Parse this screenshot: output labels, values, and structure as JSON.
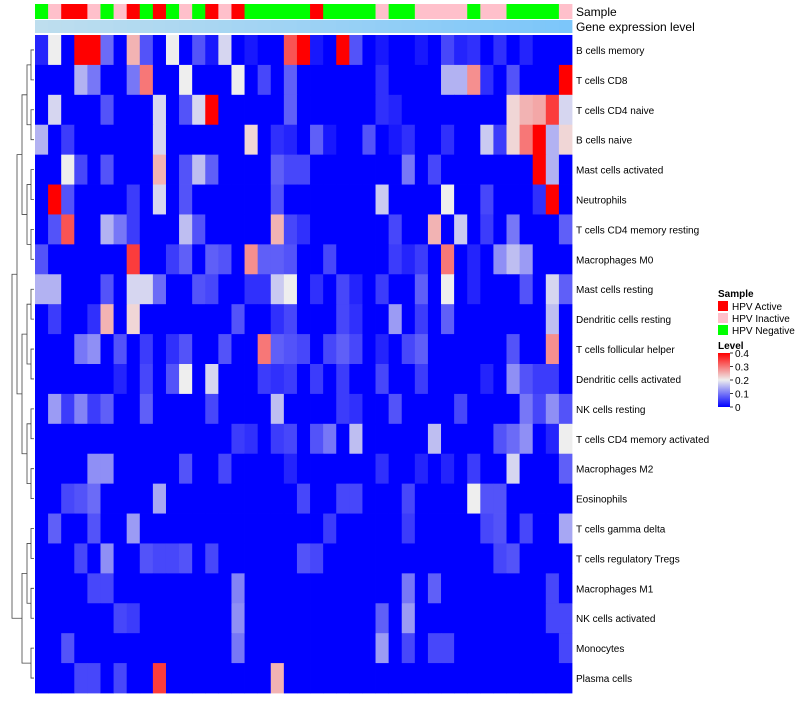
{
  "chart_data": {
    "type": "heatmap",
    "annotation_tracks": [
      "Sample",
      "Gene expression level"
    ],
    "legend": {
      "sample_title": "Sample",
      "sample_entries": [
        {
          "label": "HPV Active",
          "color": "#ff0000"
        },
        {
          "label": "HPV Inactive",
          "color": "#ffc0cb"
        },
        {
          "label": "HPV Negative",
          "color": "#00ff00"
        }
      ],
      "level_title": "Level",
      "level_ticks": [
        "0.4",
        "0.3",
        "0.2",
        "0.1",
        "0"
      ],
      "level_range": [
        0,
        0.4
      ],
      "low_color": "#0000ff",
      "mid_color": "#eeeeee",
      "high_color": "#ff0000"
    },
    "sample_groups": [
      2,
      1,
      0,
      0,
      1,
      2,
      1,
      0,
      2,
      0,
      2,
      1,
      2,
      0,
      1,
      0,
      2,
      2,
      2,
      2,
      2,
      0,
      2,
      2,
      2,
      2,
      1,
      2,
      2,
      1,
      1,
      1,
      1,
      2,
      1,
      1,
      2,
      2,
      2,
      2,
      1
    ],
    "row_labels": [
      "B cells memory",
      "T cells CD8",
      "T cells CD4 naive",
      "B cells naive",
      "Mast cells activated",
      "Neutrophils",
      "T cells CD4 memory resting",
      "Macrophages M0",
      "Mast cells resting",
      "Dendritic cells resting",
      "T cells follicular helper",
      "Dendritic cells activated",
      "NK cells resting",
      "T cells CD4 memory activated",
      "Macrophages M2",
      "Eosinophils",
      "T cells gamma delta",
      "T cells regulatory  Tregs",
      "Macrophages M1",
      "NK cells activated",
      "Monocytes",
      "Plasma cells"
    ],
    "values": [
      [
        0.03,
        0.2,
        0.0,
        0.4,
        0.4,
        0.09,
        0.0,
        0.25,
        0.07,
        0.0,
        0.2,
        0.0,
        0.07,
        0.02,
        0.18,
        0.0,
        0.02,
        0.0,
        0.0,
        0.33,
        0.4,
        0.02,
        0.0,
        0.4,
        0.07,
        0.0,
        0.02,
        0.0,
        0.0,
        0.02,
        0.0,
        0.06,
        0.03,
        0.04,
        0.0,
        0.04,
        0.0,
        0.03,
        0.0,
        0.0,
        0.0
      ],
      [
        0.0,
        0.0,
        0.0,
        0.15,
        0.1,
        0.0,
        0.0,
        0.1,
        0.3,
        0.0,
        0.0,
        0.2,
        0.0,
        0.0,
        0.0,
        0.2,
        0.0,
        0.06,
        0.0,
        0.08,
        0.0,
        0.0,
        0.0,
        0.0,
        0.0,
        0.0,
        0.04,
        0.0,
        0.0,
        0.0,
        0.0,
        0.15,
        0.15,
        0.28,
        0.04,
        0.0,
        0.07,
        0.0,
        0.0,
        0.0,
        0.4
      ],
      [
        0.0,
        0.18,
        0.0,
        0.0,
        0.0,
        0.07,
        0.0,
        0.0,
        0.0,
        0.18,
        0.0,
        0.07,
        0.18,
        0.4,
        0.0,
        0.0,
        0.0,
        0.0,
        0.0,
        0.08,
        0.0,
        0.0,
        0.0,
        0.0,
        0.0,
        0.0,
        0.04,
        0.03,
        0.0,
        0.0,
        0.0,
        0.0,
        0.0,
        0.0,
        0.0,
        0.0,
        0.22,
        0.25,
        0.26,
        0.35,
        0.18
      ],
      [
        0.15,
        0.0,
        0.05,
        0.0,
        0.0,
        0.0,
        0.0,
        0.0,
        0.0,
        0.18,
        0.0,
        0.0,
        0.0,
        0.0,
        0.0,
        0.0,
        0.22,
        0.0,
        0.04,
        0.03,
        0.0,
        0.08,
        0.02,
        0.0,
        0.0,
        0.07,
        0.0,
        0.02,
        0.04,
        0.0,
        0.0,
        0.04,
        0.0,
        0.0,
        0.17,
        0.05,
        0.22,
        0.3,
        0.4,
        0.15,
        0.22
      ],
      [
        0.0,
        0.0,
        0.2,
        0.06,
        0.0,
        0.07,
        0.0,
        0.0,
        0.0,
        0.25,
        0.0,
        0.07,
        0.16,
        0.08,
        0.0,
        0.0,
        0.0,
        0.0,
        0.08,
        0.06,
        0.06,
        0.0,
        0.0,
        0.0,
        0.0,
        0.0,
        0.0,
        0.0,
        0.1,
        0.0,
        0.06,
        0.0,
        0.0,
        0.0,
        0.0,
        0.0,
        0.0,
        0.0,
        0.4,
        0.15,
        0.0
      ],
      [
        0.0,
        0.4,
        0.07,
        0.0,
        0.0,
        0.0,
        0.0,
        0.05,
        0.0,
        0.18,
        0.0,
        0.07,
        0.0,
        0.0,
        0.0,
        0.0,
        0.0,
        0.0,
        0.07,
        0.0,
        0.0,
        0.0,
        0.0,
        0.0,
        0.0,
        0.0,
        0.17,
        0.0,
        0.0,
        0.0,
        0.0,
        0.2,
        0.0,
        0.0,
        0.06,
        0.0,
        0.0,
        0.0,
        0.04,
        0.4,
        0.0
      ],
      [
        0.0,
        0.07,
        0.33,
        0.0,
        0.0,
        0.15,
        0.1,
        0.05,
        0.0,
        0.0,
        0.0,
        0.16,
        0.07,
        0.0,
        0.0,
        0.0,
        0.0,
        0.0,
        0.25,
        0.06,
        0.04,
        0.0,
        0.0,
        0.0,
        0.0,
        0.0,
        0.0,
        0.06,
        0.0,
        0.0,
        0.25,
        0.0,
        0.17,
        0.0,
        0.05,
        0.0,
        0.1,
        0.0,
        0.0,
        0.0,
        0.08
      ],
      [
        0.07,
        0.0,
        0.0,
        0.0,
        0.0,
        0.0,
        0.0,
        0.35,
        0.0,
        0.0,
        0.05,
        0.08,
        0.0,
        0.08,
        0.07,
        0.0,
        0.28,
        0.08,
        0.08,
        0.07,
        0.0,
        0.0,
        0.06,
        0.0,
        0.0,
        0.0,
        0.0,
        0.05,
        0.03,
        0.05,
        0.0,
        0.3,
        0.0,
        0.03,
        0.0,
        0.12,
        0.16,
        0.13,
        0.0,
        0.0,
        0.0
      ],
      [
        0.15,
        0.15,
        0.0,
        0.0,
        0.0,
        0.07,
        0.0,
        0.18,
        0.18,
        0.09,
        0.0,
        0.0,
        0.07,
        0.06,
        0.0,
        0.0,
        0.04,
        0.04,
        0.17,
        0.2,
        0.0,
        0.04,
        0.0,
        0.06,
        0.03,
        0.0,
        0.05,
        0.0,
        0.0,
        0.08,
        0.0,
        0.2,
        0.0,
        0.03,
        0.0,
        0.0,
        0.0,
        0.07,
        0.0,
        0.18,
        0.08
      ],
      [
        0.0,
        0.05,
        0.0,
        0.0,
        0.04,
        0.25,
        0.0,
        0.22,
        0.0,
        0.0,
        0.0,
        0.0,
        0.0,
        0.0,
        0.0,
        0.07,
        0.0,
        0.0,
        0.04,
        0.06,
        0.0,
        0.0,
        0.0,
        0.06,
        0.04,
        0.0,
        0.0,
        0.13,
        0.0,
        0.05,
        0.0,
        0.08,
        0.0,
        0.0,
        0.0,
        0.0,
        0.0,
        0.0,
        0.0,
        0.16,
        0.0
      ],
      [
        0.0,
        0.0,
        0.0,
        0.1,
        0.12,
        0.0,
        0.07,
        0.0,
        0.05,
        0.0,
        0.04,
        0.07,
        0.0,
        0.0,
        0.07,
        0.0,
        0.0,
        0.3,
        0.08,
        0.07,
        0.06,
        0.0,
        0.06,
        0.08,
        0.06,
        0.0,
        0.03,
        0.0,
        0.06,
        0.08,
        0.0,
        0.0,
        0.0,
        0.0,
        0.0,
        0.0,
        0.07,
        0.0,
        0.0,
        0.28,
        0.0
      ],
      [
        0.0,
        0.0,
        0.0,
        0.0,
        0.0,
        0.0,
        0.03,
        0.0,
        0.06,
        0.0,
        0.07,
        0.2,
        0.0,
        0.18,
        0.0,
        0.0,
        0.0,
        0.05,
        0.04,
        0.05,
        0.0,
        0.05,
        0.0,
        0.05,
        0.0,
        0.0,
        0.06,
        0.0,
        0.0,
        0.05,
        0.0,
        0.0,
        0.0,
        0.0,
        0.03,
        0.0,
        0.12,
        0.07,
        0.05,
        0.05,
        0.0
      ],
      [
        0.0,
        0.13,
        0.05,
        0.11,
        0.05,
        0.08,
        0.0,
        0.0,
        0.08,
        0.0,
        0.0,
        0.0,
        0.0,
        0.06,
        0.0,
        0.0,
        0.0,
        0.0,
        0.16,
        0.0,
        0.0,
        0.0,
        0.0,
        0.05,
        0.04,
        0.0,
        0.0,
        0.07,
        0.0,
        0.0,
        0.0,
        0.0,
        0.06,
        0.0,
        0.0,
        0.0,
        0.0,
        0.1,
        0.06,
        0.12,
        0.07
      ],
      [
        0.0,
        0.0,
        0.0,
        0.0,
        0.0,
        0.0,
        0.0,
        0.0,
        0.0,
        0.0,
        0.0,
        0.0,
        0.0,
        0.0,
        0.0,
        0.05,
        0.04,
        0.0,
        0.05,
        0.06,
        0.0,
        0.07,
        0.1,
        0.0,
        0.16,
        0.0,
        0.0,
        0.0,
        0.0,
        0.0,
        0.16,
        0.0,
        0.0,
        0.0,
        0.0,
        0.07,
        0.09,
        0.12,
        0.0,
        0.03,
        0.2
      ],
      [
        0.0,
        0.0,
        0.0,
        0.0,
        0.12,
        0.12,
        0.0,
        0.0,
        0.0,
        0.0,
        0.0,
        0.07,
        0.0,
        0.0,
        0.06,
        0.0,
        0.0,
        0.0,
        0.0,
        0.03,
        0.0,
        0.0,
        0.0,
        0.0,
        0.0,
        0.0,
        0.04,
        0.0,
        0.0,
        0.03,
        0.0,
        0.03,
        0.0,
        0.05,
        0.0,
        0.0,
        0.18,
        0.0,
        0.0,
        0.0,
        0.08
      ],
      [
        0.0,
        0.0,
        0.06,
        0.07,
        0.09,
        0.0,
        0.0,
        0.0,
        0.0,
        0.14,
        0.0,
        0.0,
        0.0,
        0.0,
        0.0,
        0.0,
        0.0,
        0.0,
        0.0,
        0.0,
        0.06,
        0.0,
        0.0,
        0.06,
        0.06,
        0.0,
        0.0,
        0.0,
        0.06,
        0.0,
        0.0,
        0.0,
        0.0,
        0.2,
        0.07,
        0.07,
        0.0,
        0.0,
        0.0,
        0.0,
        0.0
      ],
      [
        0.0,
        0.08,
        0.0,
        0.0,
        0.07,
        0.0,
        0.0,
        0.13,
        0.0,
        0.0,
        0.0,
        0.0,
        0.0,
        0.0,
        0.0,
        0.0,
        0.0,
        0.0,
        0.0,
        0.0,
        0.0,
        0.0,
        0.05,
        0.0,
        0.0,
        0.0,
        0.0,
        0.0,
        0.05,
        0.0,
        0.0,
        0.0,
        0.0,
        0.0,
        0.06,
        0.07,
        0.0,
        0.06,
        0.0,
        0.0,
        0.14
      ],
      [
        0.0,
        0.0,
        0.0,
        0.06,
        0.0,
        0.12,
        0.0,
        0.0,
        0.07,
        0.06,
        0.06,
        0.07,
        0.0,
        0.06,
        0.0,
        0.0,
        0.0,
        0.0,
        0.0,
        0.0,
        0.07,
        0.06,
        0.0,
        0.0,
        0.0,
        0.0,
        0.0,
        0.0,
        0.0,
        0.0,
        0.0,
        0.0,
        0.0,
        0.0,
        0.0,
        0.06,
        0.07,
        0.0,
        0.0,
        0.0,
        0.0
      ],
      [
        0.0,
        0.0,
        0.0,
        0.0,
        0.06,
        0.06,
        0.0,
        0.0,
        0.0,
        0.0,
        0.0,
        0.0,
        0.0,
        0.0,
        0.0,
        0.11,
        0.0,
        0.0,
        0.0,
        0.0,
        0.0,
        0.0,
        0.0,
        0.0,
        0.0,
        0.0,
        0.0,
        0.0,
        0.1,
        0.0,
        0.08,
        0.0,
        0.0,
        0.0,
        0.0,
        0.0,
        0.0,
        0.0,
        0.0,
        0.06,
        0.0
      ],
      [
        0.0,
        0.0,
        0.0,
        0.0,
        0.0,
        0.0,
        0.06,
        0.05,
        0.0,
        0.0,
        0.0,
        0.0,
        0.0,
        0.0,
        0.0,
        0.12,
        0.0,
        0.0,
        0.0,
        0.0,
        0.0,
        0.0,
        0.0,
        0.0,
        0.0,
        0.0,
        0.08,
        0.0,
        0.13,
        0.0,
        0.0,
        0.0,
        0.0,
        0.0,
        0.0,
        0.0,
        0.0,
        0.0,
        0.0,
        0.06,
        0.06
      ],
      [
        0.0,
        0.0,
        0.07,
        0.0,
        0.0,
        0.0,
        0.0,
        0.0,
        0.0,
        0.0,
        0.0,
        0.0,
        0.0,
        0.0,
        0.0,
        0.1,
        0.0,
        0.0,
        0.0,
        0.0,
        0.0,
        0.0,
        0.0,
        0.0,
        0.0,
        0.0,
        0.13,
        0.0,
        0.06,
        0.0,
        0.06,
        0.06,
        0.0,
        0.0,
        0.0,
        0.0,
        0.0,
        0.0,
        0.0,
        0.0,
        0.06
      ],
      [
        0.0,
        0.0,
        0.0,
        0.06,
        0.06,
        0.0,
        0.06,
        0.0,
        0.0,
        0.35,
        0.0,
        0.0,
        0.0,
        0.0,
        0.0,
        0.0,
        0.0,
        0.0,
        0.25,
        0.0,
        0.0,
        0.0,
        0.0,
        0.0,
        0.0,
        0.0,
        0.0,
        0.0,
        0.0,
        0.0,
        0.0,
        0.0,
        0.0,
        0.0,
        0.0,
        0.0,
        0.0,
        0.0,
        0.0,
        0.0,
        0.0
      ]
    ]
  }
}
